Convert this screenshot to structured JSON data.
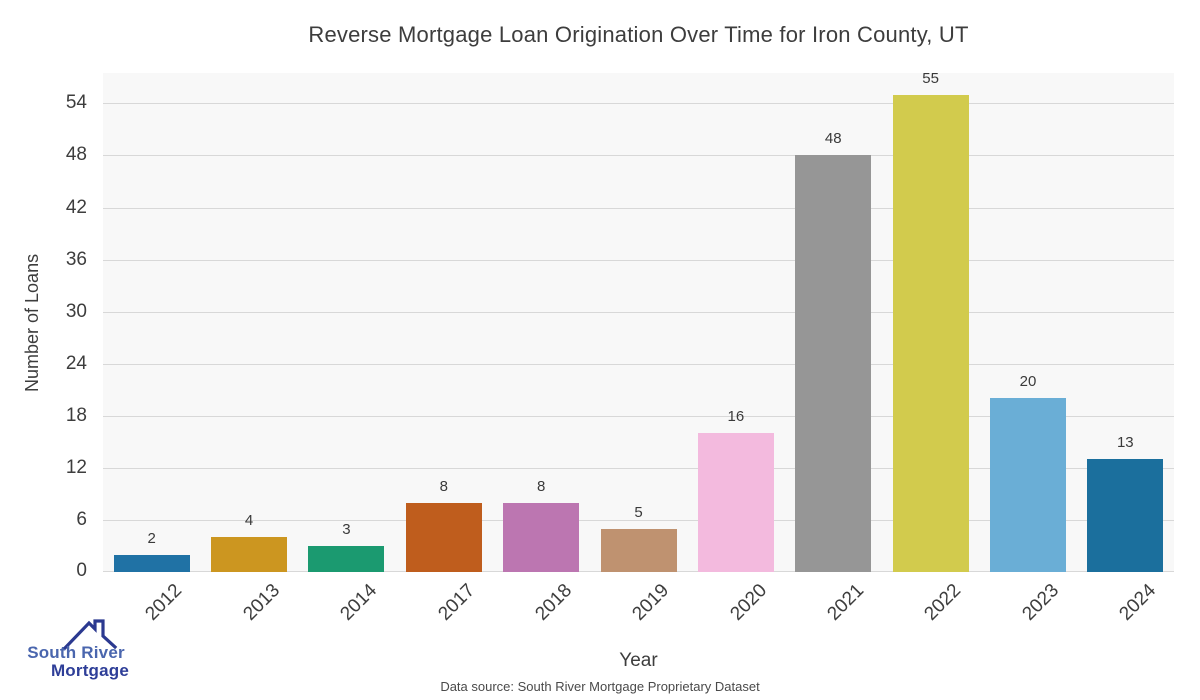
{
  "chart_data": {
    "type": "bar",
    "title": "Reverse Mortgage Loan Origination Over Time for Iron County, UT",
    "xlabel": "Year",
    "ylabel": "Number of Loans",
    "categories": [
      "2012",
      "2013",
      "2014",
      "2017",
      "2018",
      "2019",
      "2020",
      "2021",
      "2022",
      "2023",
      "2024"
    ],
    "values": [
      2,
      4,
      3,
      8,
      8,
      5,
      16,
      48,
      55,
      20,
      13
    ],
    "bar_colors": [
      "#2072a5",
      "#cc9620",
      "#1b9a70",
      "#bf5d1d",
      "#bc76b1",
      "#bf9270",
      "#f3bade",
      "#969696",
      "#d2cb4d",
      "#6aaed6",
      "#1b6f9d"
    ],
    "ylim": [
      0,
      57.5
    ],
    "yticks": [
      0,
      6,
      12,
      18,
      24,
      30,
      36,
      42,
      48,
      54
    ],
    "grid": true,
    "legend": "none",
    "plot_bg": "#f8f8f8",
    "grid_color": "#d8d8d8"
  },
  "footer": {
    "source": "Data source: South River Mortgage Proprietary Dataset"
  },
  "logo": {
    "line1": "South River",
    "line2": "Mortgage",
    "text_color_1": "#4a66ae",
    "text_color_2": "#2e3e98",
    "roof_color": "#2b3990",
    "icon": "house-roof-icon"
  }
}
